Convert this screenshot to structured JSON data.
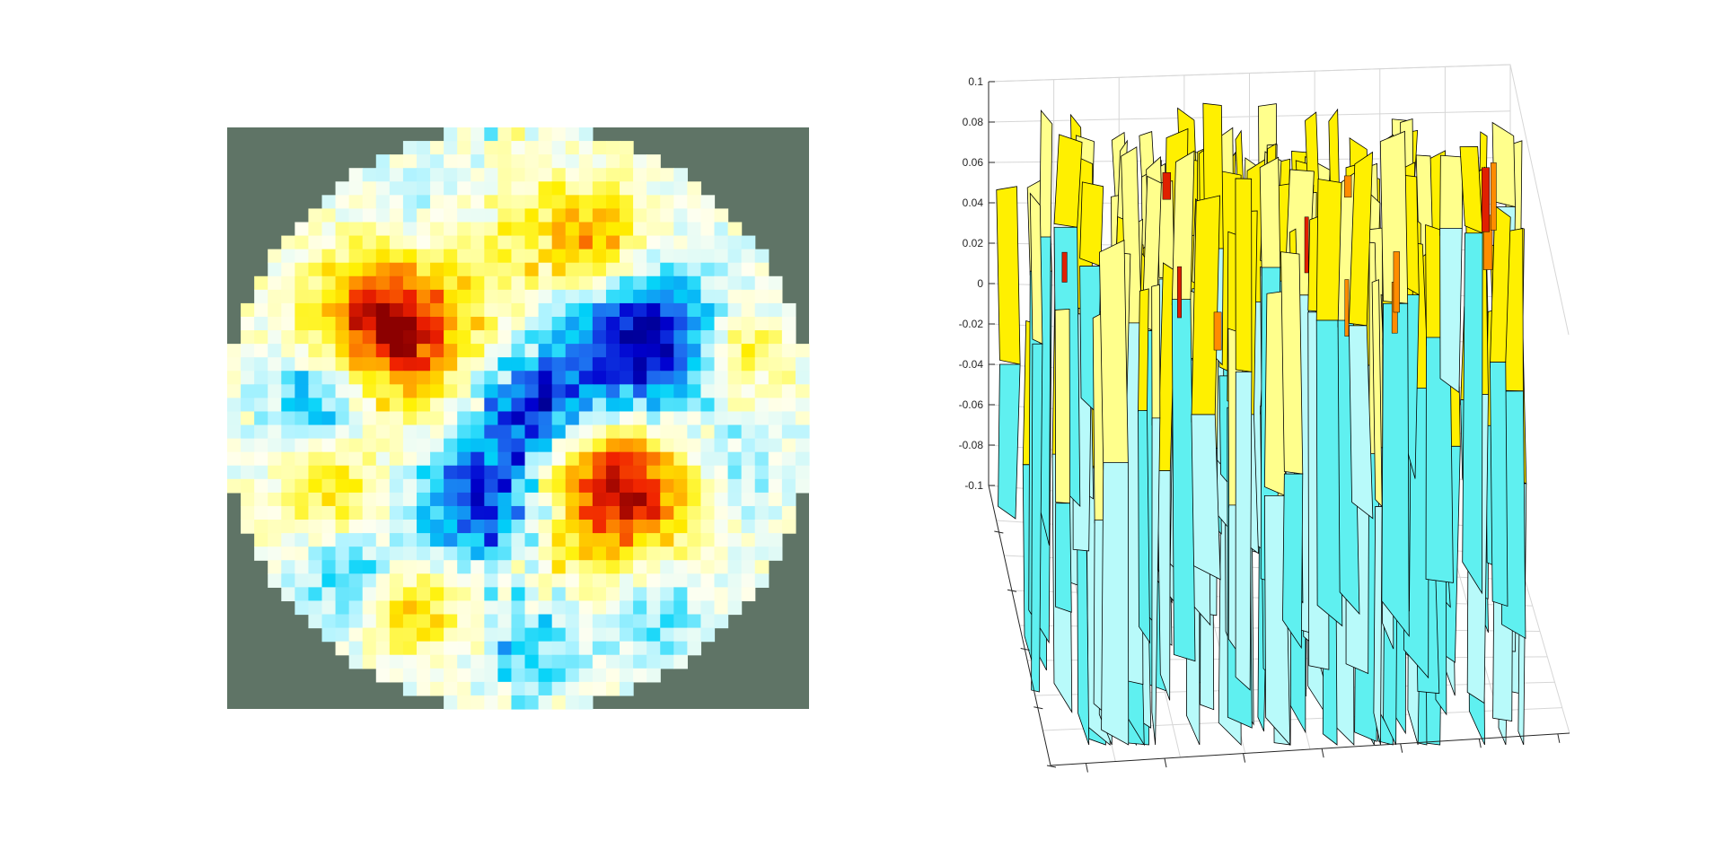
{
  "chart_data": [
    {
      "type": "heatmap",
      "title": "",
      "xlabel": "",
      "ylabel": "",
      "grid_size": 43,
      "mask": "circular",
      "background_color": "#5f7466",
      "colormap": [
        "#00008b",
        "#0000d0",
        "#1e6ef0",
        "#00d2f8",
        "#b4f4ff",
        "#fffff0",
        "#ffff9c",
        "#fff000",
        "#ff9b00",
        "#f02000",
        "#8c0000"
      ],
      "value_range": [
        -0.1,
        0.1
      ],
      "blobs": [
        {
          "cx": 11.5,
          "cy": 14.5,
          "r": 4.2,
          "value": 0.1
        },
        {
          "cx": 28.5,
          "cy": 26.5,
          "r": 4.6,
          "value": 0.1
        },
        {
          "cx": 30.0,
          "cy": 16.0,
          "r": 4.2,
          "value": -0.1
        },
        {
          "cx": 18.5,
          "cy": 27.0,
          "r": 3.6,
          "value": -0.08
        },
        {
          "cx": 22.0,
          "cy": 20.0,
          "r": 3.0,
          "value": -0.07
        },
        {
          "cx": 27.0,
          "cy": 8.0,
          "r": 2.6,
          "value": 0.06
        },
        {
          "cx": 37.5,
          "cy": 16.5,
          "r": 2.2,
          "value": 0.05
        },
        {
          "cx": 7.5,
          "cy": 26.5,
          "r": 2.8,
          "value": 0.04
        },
        {
          "cx": 13.5,
          "cy": 35.0,
          "r": 2.4,
          "value": 0.05
        },
        {
          "cx": 6.5,
          "cy": 19.5,
          "r": 2.8,
          "value": -0.06
        },
        {
          "cx": 8.5,
          "cy": 32.5,
          "r": 2.6,
          "value": -0.04
        },
        {
          "cx": 22.5,
          "cy": 38.5,
          "r": 2.4,
          "value": -0.04
        },
        {
          "cx": 31.0,
          "cy": 34.5,
          "r": 3.2,
          "value": -0.04
        },
        {
          "cx": 36.5,
          "cy": 25.5,
          "r": 3.0,
          "value": -0.03
        },
        {
          "cx": 21.0,
          "cy": 8.0,
          "r": 3.6,
          "value": 0.03
        },
        {
          "cx": 14.0,
          "cy": 6.0,
          "r": 3.0,
          "value": -0.02
        }
      ]
    },
    {
      "type": "surface",
      "title": "",
      "zlabel": "",
      "zlim": [
        -0.1,
        0.1
      ],
      "z_ticks": [
        "0.1",
        "0.08",
        "0.06",
        "0.04",
        "0.02",
        "0",
        "-0.02",
        "-0.04",
        "-0.06",
        "-0.08",
        "-0.1"
      ],
      "grid": true,
      "edge_color": "#000000",
      "face_colors": [
        "#5ff0f0",
        "#b8fafa",
        "#ffff8c",
        "#fff000",
        "#ff8c00",
        "#e02000"
      ]
    }
  ]
}
